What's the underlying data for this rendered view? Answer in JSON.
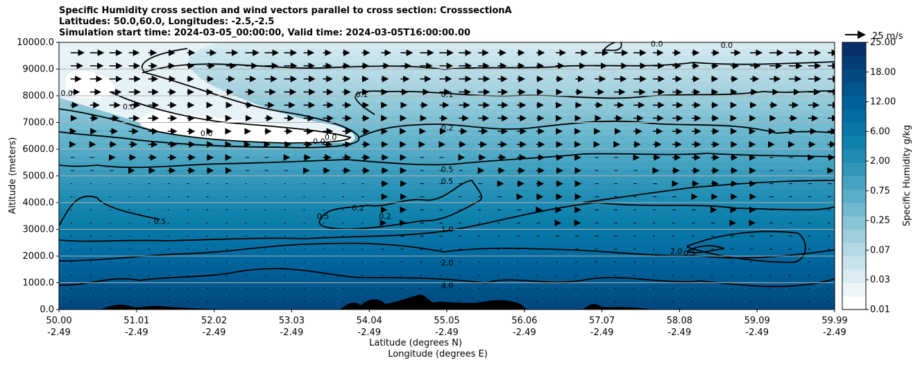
{
  "chart_data": {
    "type": "contour",
    "title_lines": [
      "Specific Humidity cross section and wind vectors parallel to cross section: CrosssectionA",
      "Latitudes: 50.0,60.0, Longitudes: -2.5,-2.5",
      "Simulation start time: 2024-03-05_00:00:00, Valid time: 2024-03-05T16:00:00.00"
    ],
    "ylabel": "Altitude (meters)",
    "xlabel_lat": "Latitude (degrees N)",
    "xlabel_lon": "Longitude (degrees E)",
    "ylim": [
      0,
      10000
    ],
    "xlim": [
      50.0,
      59.99
    ],
    "y_ticks": [
      "0.0",
      "1000.0",
      "2000.0",
      "3000.0",
      "4000.0",
      "5000.0",
      "6000.0",
      "7000.0",
      "8000.0",
      "9000.0",
      "10000.0"
    ],
    "x_ticks": [
      {
        "lat": "50.00",
        "lon": "-2.49"
      },
      {
        "lat": "51.01",
        "lon": "-2.49"
      },
      {
        "lat": "52.02",
        "lon": "-2.49"
      },
      {
        "lat": "53.03",
        "lon": "-2.49"
      },
      {
        "lat": "54.04",
        "lon": "-2.49"
      },
      {
        "lat": "55.05",
        "lon": "-2.49"
      },
      {
        "lat": "56.06",
        "lon": "-2.49"
      },
      {
        "lat": "57.07",
        "lon": "-2.49"
      },
      {
        "lat": "58.08",
        "lon": "-2.49"
      },
      {
        "lat": "59.09",
        "lon": "-2.49"
      },
      {
        "lat": "59.99",
        "lon": "-2.49"
      }
    ],
    "grid": "horizontal",
    "colorbar": {
      "label": "Specific Humidity g/kg",
      "ticks": [
        "0.01",
        "0.03",
        "0.07",
        "0.25",
        "0.75",
        "2.00",
        "6.00",
        "12.00",
        "18.00",
        "25.00"
      ],
      "ticks_extra": [
        "0.25"
      ],
      "n_levels": 20,
      "color_low": "#ffffff",
      "color_high": "#08306b"
    },
    "quiver_key": {
      "label": "25 m/s",
      "value": 25
    },
    "contour_labels": [
      {
        "text": "0.0",
        "lat": 50.1,
        "alt": 8100
      },
      {
        "text": "0.0",
        "lat": 50.9,
        "alt": 7600
      },
      {
        "text": "0.0",
        "lat": 51.9,
        "alt": 6600
      },
      {
        "text": "0.0",
        "lat": 53.35,
        "alt": 6300
      },
      {
        "text": "0.0",
        "lat": 53.5,
        "alt": 6450
      },
      {
        "text": "0.0",
        "lat": 57.7,
        "alt": 9950
      },
      {
        "text": "0.0",
        "lat": 58.6,
        "alt": 9900
      },
      {
        "text": "0.1",
        "lat": 53.9,
        "alt": 8050
      },
      {
        "text": "0.1",
        "lat": 55.0,
        "alt": 8050
      },
      {
        "text": "0.2",
        "lat": 55.0,
        "alt": 6800
      },
      {
        "text": "0.2",
        "lat": 53.85,
        "alt": 3800
      },
      {
        "text": "0.2",
        "lat": 54.2,
        "alt": 3500
      },
      {
        "text": "0.5",
        "lat": 55.0,
        "alt": 5250
      },
      {
        "text": "0.5",
        "lat": 55.0,
        "alt": 4800
      },
      {
        "text": "0.5",
        "lat": 51.3,
        "alt": 3300
      },
      {
        "text": "0.5",
        "lat": 53.4,
        "alt": 3500
      },
      {
        "text": "0.5",
        "lat": 58.12,
        "alt": 2100
      },
      {
        "text": "1.0",
        "lat": 55.0,
        "alt": 3000
      },
      {
        "text": "2.0",
        "lat": 55.0,
        "alt": 1750
      },
      {
        "text": "2.0",
        "lat": 57.95,
        "alt": 2200
      },
      {
        "text": "4.0",
        "lat": 55.0,
        "alt": 900
      }
    ],
    "terrain_peaks": [
      {
        "lat": 54.7,
        "alt": 600
      },
      {
        "lat": 54.85,
        "alt": 400
      },
      {
        "lat": 56.9,
        "alt": 300
      },
      {
        "lat": 51.8,
        "alt": 150
      }
    ]
  }
}
